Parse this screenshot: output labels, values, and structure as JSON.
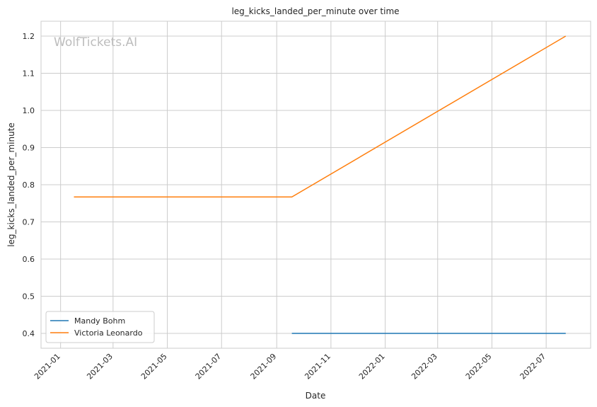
{
  "chart_data": {
    "type": "line",
    "title": "leg_kicks_landed_per_minute over time",
    "xlabel": "Date",
    "ylabel": "leg_kicks_landed_per_minute",
    "watermark": "WolfTickets.AI",
    "xlim": [
      "2020-12-10",
      "2022-08-20"
    ],
    "ylim": [
      0.36,
      1.24
    ],
    "x_ticks": [
      "2021-01",
      "2021-03",
      "2021-05",
      "2021-07",
      "2021-09",
      "2021-11",
      "2022-01",
      "2022-03",
      "2022-05",
      "2022-07"
    ],
    "y_ticks": [
      "0.4",
      "0.5",
      "0.6",
      "0.7",
      "0.8",
      "0.9",
      "1.0",
      "1.1",
      "1.2"
    ],
    "grid": true,
    "legend_position": "lower-left",
    "series": [
      {
        "name": "Mandy Bohm",
        "color": "#1f77b4",
        "points": [
          {
            "x": "2021-09-18",
            "y": 0.4
          },
          {
            "x": "2022-07-23",
            "y": 0.4
          }
        ]
      },
      {
        "name": "Victoria Leonardo",
        "color": "#ff7f0e",
        "points": [
          {
            "x": "2021-01-16",
            "y": 0.767
          },
          {
            "x": "2021-09-18",
            "y": 0.767
          },
          {
            "x": "2022-07-23",
            "y": 1.2
          }
        ]
      }
    ]
  }
}
